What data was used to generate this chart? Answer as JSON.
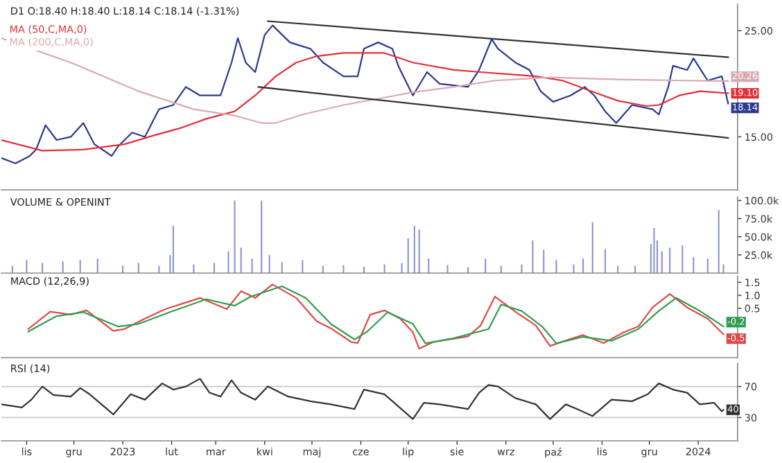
{
  "chart_data": [
    {
      "type": "line",
      "title": "D1 O:18.40 H:18.40 L:18.14 C:18.14 (-1.31%)",
      "legend": "top left",
      "tick_labels": "y",
      "grid": false,
      "xlim": [
        "2022-10-16",
        "2024-01-26"
      ],
      "ylim": [
        10,
        27.5
      ],
      "yticks": [
        {
          "value": 15,
          "label": "15.00"
        },
        {
          "value": 25,
          "label": "25.00"
        }
      ],
      "series": [
        {
          "color": "#2b3990",
          "x": [
            "2022-10-16",
            "2022-10-25",
            "2022-11-03",
            "2022-11-07",
            "2022-11-13",
            "2022-11-20",
            "2022-11-29",
            "2022-12-07",
            "2022-12-14",
            "2022-12-25",
            "2022-12-29",
            "2023-01-07",
            "2023-01-15",
            "2023-01-24",
            "2023-02-02",
            "2023-02-10",
            "2023-02-19",
            "2023-03-04",
            "2023-03-11",
            "2023-03-15",
            "2023-03-20",
            "2023-03-26",
            "2023-04-01",
            "2023-04-06",
            "2023-04-17",
            "2023-04-30",
            "2023-05-08",
            "2023-05-21",
            "2023-05-30",
            "2023-06-03",
            "2023-06-12",
            "2023-06-21",
            "2023-06-25",
            "2023-07-04",
            "2023-07-13",
            "2023-07-21",
            "2023-08-08",
            "2023-08-15",
            "2023-08-23",
            "2023-08-27",
            "2023-09-07",
            "2023-09-16",
            "2023-09-23",
            "2023-10-01",
            "2023-10-12",
            "2023-10-21",
            "2023-10-27",
            "2023-11-03",
            "2023-11-10",
            "2023-11-20",
            "2023-12-03",
            "2023-12-07",
            "2023-12-13",
            "2023-12-16",
            "2023-12-25",
            "2023-12-29",
            "2024-01-07",
            "2024-01-16",
            "2024-01-20"
          ],
          "values": [
            13.0,
            12.5,
            13.2,
            13.8,
            16.1,
            14.7,
            15.0,
            16.3,
            14.3,
            13.2,
            14.1,
            15.4,
            15.0,
            17.6,
            18.0,
            19.7,
            18.9,
            18.9,
            22.0,
            24.3,
            22.0,
            21.1,
            24.6,
            25.5,
            23.9,
            23.3,
            22.0,
            20.7,
            20.7,
            23.3,
            23.9,
            23.3,
            21.6,
            18.9,
            21.1,
            20.0,
            19.7,
            21.3,
            24.2,
            23.3,
            22.0,
            21.3,
            19.3,
            18.3,
            18.9,
            19.7,
            18.9,
            17.4,
            16.3,
            18.0,
            17.6,
            17.1,
            19.7,
            21.7,
            21.3,
            22.4,
            20.3,
            20.7,
            18.14
          ],
          "value_labels": [
            null,
            null,
            null,
            null,
            null,
            null,
            null,
            null,
            null,
            null,
            null,
            null,
            null,
            null,
            null,
            null,
            null,
            null,
            null,
            null,
            null,
            null,
            null,
            null,
            null,
            null,
            null,
            null,
            null,
            null,
            null,
            null,
            null,
            null,
            null,
            null,
            null,
            null,
            null,
            null,
            null,
            null,
            null,
            null,
            null,
            null,
            null,
            null,
            null,
            null,
            null,
            null,
            null,
            null,
            null,
            null,
            null,
            null,
            "18.14"
          ]
        },
        {
          "name": "MA (50,C,MA,0)",
          "color": "#e0303a",
          "x": [
            "2022-10-16",
            "2022-11-11",
            "2022-12-07",
            "2023-01-02",
            "2023-01-20",
            "2023-02-06",
            "2023-02-23",
            "2023-03-13",
            "2023-03-26",
            "2023-04-08",
            "2023-04-21",
            "2023-05-04",
            "2023-05-21",
            "2023-06-03",
            "2023-06-16",
            "2023-07-04",
            "2023-07-30",
            "2023-08-16",
            "2023-09-03",
            "2023-09-20",
            "2023-10-07",
            "2023-10-25",
            "2023-11-11",
            "2023-11-29",
            "2023-12-07",
            "2023-12-20",
            "2024-01-02",
            "2024-01-20"
          ],
          "values": [
            14.7,
            13.7,
            13.8,
            14.3,
            15.1,
            15.8,
            16.7,
            17.4,
            18.9,
            20.7,
            22.0,
            22.6,
            22.9,
            22.9,
            22.9,
            22.0,
            21.3,
            21.1,
            20.9,
            20.7,
            20.3,
            19.3,
            18.4,
            17.9,
            18.0,
            18.9,
            19.3,
            19.1
          ],
          "value_labels": [
            null,
            null,
            null,
            null,
            null,
            null,
            null,
            null,
            null,
            null,
            null,
            null,
            null,
            null,
            null,
            null,
            null,
            null,
            null,
            null,
            null,
            null,
            null,
            null,
            null,
            null,
            null,
            "19.10"
          ]
        },
        {
          "name": "MA (200,C,MA,0)",
          "color": "#d9a9b3",
          "x": [
            "2022-10-16",
            "2022-11-29",
            "2023-01-11",
            "2023-02-15",
            "2023-03-13",
            "2023-03-30",
            "2023-04-08",
            "2023-04-25",
            "2023-05-21",
            "2023-06-16",
            "2023-07-04",
            "2023-07-30",
            "2023-08-25",
            "2023-09-29",
            "2023-11-11",
            "2023-12-25",
            "2024-01-20"
          ],
          "values": [
            24.3,
            22.0,
            19.3,
            17.6,
            17.0,
            16.3,
            16.3,
            17.1,
            18.0,
            18.7,
            19.2,
            19.7,
            20.3,
            20.6,
            20.4,
            20.3,
            20.26
          ],
          "value_labels": [
            null,
            null,
            null,
            null,
            null,
            null,
            null,
            null,
            null,
            null,
            null,
            null,
            null,
            null,
            null,
            null,
            "20.26"
          ]
        },
        {
          "color": "#333333",
          "x": [
            "2023-04-03",
            "2024-01-20"
          ],
          "values": [
            25.9,
            22.5
          ]
        },
        {
          "color": "#333333",
          "x": [
            "2023-03-28",
            "2024-01-20"
          ],
          "values": [
            19.7,
            14.9
          ]
        }
      ]
    },
    {
      "type": "bar",
      "title": "VOLUME & OPENINT",
      "tick_labels": "y",
      "grid": false,
      "xlim": [
        "2022-10-16",
        "2024-01-26"
      ],
      "ylim": [
        0,
        105000
      ],
      "yticks": [
        {
          "value": 25000,
          "label": "25.0k"
        },
        {
          "value": 50000,
          "label": "50.0k"
        },
        {
          "value": 75000,
          "label": "75.0k"
        },
        {
          "value": 100000,
          "label": "100.0k"
        }
      ],
      "series": [
        {
          "color": "#8c90cf",
          "x": [
            "2022-10-23",
            "2022-11-01",
            "2022-11-11",
            "2022-11-24",
            "2022-12-05",
            "2022-12-16",
            "2023-01-01",
            "2023-01-11",
            "2023-01-24",
            "2023-01-31",
            "2023-02-02",
            "2023-02-15",
            "2023-02-28",
            "2023-03-09",
            "2023-03-13",
            "2023-03-17",
            "2023-03-24",
            "2023-03-30",
            "2023-04-04",
            "2023-04-12",
            "2023-04-25",
            "2023-05-08",
            "2023-05-21",
            "2023-06-03",
            "2023-06-16",
            "2023-06-27",
            "2023-07-01",
            "2023-07-05",
            "2023-07-08",
            "2023-07-14",
            "2023-07-26",
            "2023-08-08",
            "2023-08-19",
            "2023-08-29",
            "2023-09-11",
            "2023-09-18",
            "2023-09-25",
            "2023-10-03",
            "2023-10-14",
            "2023-10-20",
            "2023-10-26",
            "2023-11-03",
            "2023-11-11",
            "2023-11-22",
            "2023-12-02",
            "2023-12-04",
            "2023-12-06",
            "2023-12-09",
            "2023-12-14",
            "2023-12-22",
            "2023-12-29",
            "2024-01-07",
            "2024-01-14",
            "2024-01-17"
          ],
          "values": [
            10000,
            18000,
            14000,
            16000,
            18000,
            20000,
            10000,
            14000,
            10000,
            25000,
            65000,
            12000,
            14000,
            30000,
            100000,
            35000,
            20000,
            100000,
            25000,
            15000,
            18000,
            10000,
            11000,
            9000,
            12000,
            14000,
            48000,
            65000,
            60000,
            20000,
            11000,
            8000,
            20000,
            10000,
            12000,
            45000,
            32000,
            18000,
            12000,
            20000,
            70000,
            33000,
            10000,
            10000,
            40000,
            62000,
            45000,
            30000,
            35000,
            38000,
            22000,
            20000,
            87000,
            12000
          ]
        }
      ]
    },
    {
      "type": "line",
      "title": "MACD (12,26,9)",
      "tick_labels": "y",
      "grid": false,
      "xlim": [
        "2022-10-16",
        "2024-01-26"
      ],
      "ylim": [
        -1.4,
        1.75
      ],
      "yticks": [
        {
          "value": 0.5,
          "label": "0.5"
        },
        {
          "value": 1,
          "label": "1.0"
        },
        {
          "value": 1.5,
          "label": "1.5"
        }
      ],
      "series": [
        {
          "color": "#e04848",
          "x": [
            "2022-11-02",
            "2022-11-16",
            "2022-11-29",
            "2022-12-09",
            "2022-12-26",
            "2023-01-02",
            "2023-01-15",
            "2023-01-28",
            "2023-02-19",
            "2023-03-08",
            "2023-03-17",
            "2023-03-26",
            "2023-04-06",
            "2023-04-21",
            "2023-05-04",
            "2023-05-13",
            "2023-05-26",
            "2023-05-30",
            "2023-06-07",
            "2023-06-16",
            "2023-06-26",
            "2023-07-04",
            "2023-07-08",
            "2023-07-17",
            "2023-08-08",
            "2023-08-16",
            "2023-08-25",
            "2023-09-07",
            "2023-09-20",
            "2023-09-29",
            "2023-10-12",
            "2023-10-20",
            "2023-11-02",
            "2023-11-15",
            "2023-11-24",
            "2023-12-03",
            "2023-12-14",
            "2023-12-25",
            "2024-01-07",
            "2024-01-17"
          ],
          "values": [
            -0.3,
            0.37,
            0.26,
            0.42,
            -0.37,
            -0.3,
            0.1,
            0.47,
            0.9,
            0.47,
            1.16,
            0.9,
            1.42,
            0.9,
            0.0,
            -0.27,
            -0.8,
            -0.84,
            0.26,
            0.42,
            0.1,
            -0.42,
            -1.05,
            -0.8,
            -0.58,
            -0.16,
            0.95,
            0.37,
            -0.16,
            -0.95,
            -0.68,
            -0.53,
            -0.84,
            -0.42,
            -0.2,
            0.53,
            1.05,
            0.53,
            0.1,
            -0.5
          ],
          "value_labels": [
            null,
            null,
            null,
            null,
            null,
            null,
            null,
            null,
            null,
            null,
            null,
            null,
            null,
            null,
            null,
            null,
            null,
            null,
            null,
            null,
            null,
            null,
            null,
            null,
            null,
            null,
            null,
            null,
            null,
            null,
            null,
            null,
            null,
            null,
            null,
            null,
            null,
            null,
            null,
            "-0.5"
          ]
        },
        {
          "color": "#2e9e50",
          "x": [
            "2022-11-02",
            "2022-11-20",
            "2022-12-07",
            "2022-12-29",
            "2023-01-11",
            "2023-02-02",
            "2023-02-23",
            "2023-03-13",
            "2023-03-23",
            "2023-04-12",
            "2023-04-27",
            "2023-05-13",
            "2023-05-28",
            "2023-06-05",
            "2023-06-18",
            "2023-07-04",
            "2023-07-12",
            "2023-07-30",
            "2023-08-21",
            "2023-08-29",
            "2023-09-11",
            "2023-09-24",
            "2023-10-03",
            "2023-10-20",
            "2023-11-07",
            "2023-11-24",
            "2023-12-07",
            "2023-12-18",
            "2024-01-02",
            "2024-01-17"
          ],
          "values": [
            -0.4,
            0.2,
            0.35,
            -0.2,
            -0.1,
            0.4,
            0.85,
            0.6,
            0.95,
            1.35,
            0.9,
            -0.1,
            -0.7,
            -0.4,
            0.35,
            -0.1,
            -0.85,
            -0.65,
            -0.3,
            0.65,
            0.4,
            -0.2,
            -0.85,
            -0.6,
            -0.75,
            -0.3,
            0.4,
            0.9,
            0.4,
            -0.2
          ],
          "value_labels": [
            null,
            null,
            null,
            null,
            null,
            null,
            null,
            null,
            null,
            null,
            null,
            null,
            null,
            null,
            null,
            null,
            null,
            null,
            null,
            null,
            null,
            null,
            null,
            null,
            null,
            null,
            null,
            null,
            null,
            "-0.2"
          ]
        }
      ]
    },
    {
      "type": "line",
      "title": "RSI (14)",
      "grid": false,
      "xlim": [
        "2022-10-16",
        "2024-01-26"
      ],
      "ylim": [
        0,
        100
      ],
      "yticks": [
        30,
        70
      ],
      "xticks": [
        {
          "value": "2022-11-01",
          "label": "lis"
        },
        {
          "value": "2022-12-01",
          "label": "gru"
        },
        {
          "value": "2023-01-01",
          "label": "2023"
        },
        {
          "value": "2023-02-01",
          "label": "lut"
        },
        {
          "value": "2023-03-01",
          "label": "mar"
        },
        {
          "value": "2023-04-01",
          "label": "kwi"
        },
        {
          "value": "2023-05-01",
          "label": "maj"
        },
        {
          "value": "2023-06-01",
          "label": "cze"
        },
        {
          "value": "2023-07-01",
          "label": "lip"
        },
        {
          "value": "2023-08-01",
          "label": "sie"
        },
        {
          "value": "2023-09-01",
          "label": "wrz"
        },
        {
          "value": "2023-10-01",
          "label": "paź"
        },
        {
          "value": "2023-11-01",
          "label": "lis"
        },
        {
          "value": "2023-12-01",
          "label": "gru"
        },
        {
          "value": "2024-01-01",
          "label": "2024"
        }
      ],
      "ref_lines": [
        {
          "axis": "y",
          "value": 70,
          "color": "#c8c8c8"
        },
        {
          "axis": "y",
          "value": 30,
          "color": "#c8c8c8"
        }
      ],
      "series": [
        {
          "color": "#333333",
          "x": [
            "2022-10-16",
            "2022-10-29",
            "2022-11-04",
            "2022-11-11",
            "2022-11-18",
            "2022-11-29",
            "2022-12-05",
            "2022-12-11",
            "2022-12-26",
            "2023-01-06",
            "2023-01-15",
            "2023-01-26",
            "2023-02-02",
            "2023-02-10",
            "2023-02-19",
            "2023-02-25",
            "2023-03-04",
            "2023-03-11",
            "2023-03-17",
            "2023-03-26",
            "2023-04-03",
            "2023-04-16",
            "2023-04-30",
            "2023-05-13",
            "2023-05-28",
            "2023-06-03",
            "2023-06-16",
            "2023-07-04",
            "2023-07-11",
            "2023-07-21",
            "2023-08-08",
            "2023-08-15",
            "2023-08-21",
            "2023-08-27",
            "2023-09-07",
            "2023-09-20",
            "2023-09-29",
            "2023-10-09",
            "2023-10-16",
            "2023-10-26",
            "2023-11-07",
            "2023-11-20",
            "2023-11-30",
            "2023-12-07",
            "2023-12-16",
            "2023-12-25",
            "2024-01-02",
            "2024-01-11",
            "2024-01-16",
            "2024-01-17"
          ],
          "values": [
            47,
            43,
            53,
            70,
            59,
            57,
            68,
            60,
            34,
            60,
            53,
            74,
            66,
            70,
            80,
            62,
            57,
            78,
            62,
            53,
            70,
            57,
            51,
            47,
            41,
            66,
            60,
            28,
            49,
            47,
            41,
            62,
            72,
            70,
            55,
            47,
            28,
            47,
            41,
            32,
            53,
            51,
            60,
            74,
            66,
            62,
            47,
            49,
            38,
            40
          ],
          "value_labels": [
            null,
            null,
            null,
            null,
            null,
            null,
            null,
            null,
            null,
            null,
            null,
            null,
            null,
            null,
            null,
            null,
            null,
            null,
            null,
            null,
            null,
            null,
            null,
            null,
            null,
            null,
            null,
            null,
            null,
            null,
            null,
            null,
            null,
            null,
            null,
            null,
            null,
            null,
            null,
            null,
            null,
            null,
            null,
            null,
            null,
            null,
            null,
            null,
            null,
            "40"
          ]
        }
      ]
    }
  ]
}
